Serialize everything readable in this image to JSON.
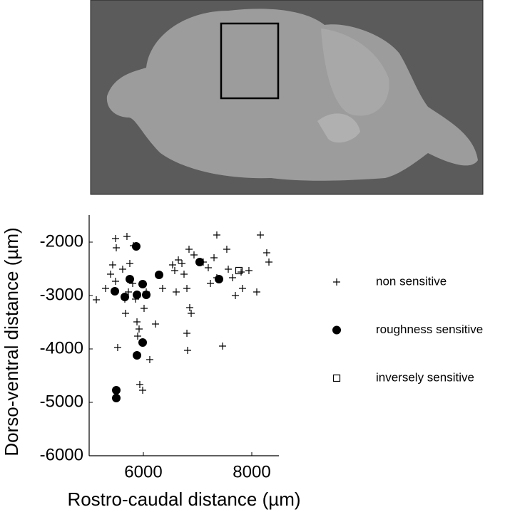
{
  "chart_data": {
    "type": "scatter",
    "x_label": "Rostro-caudal distance (µm)",
    "y_label": "Dorso-ventral distance (µm)",
    "xlim": [
      5000,
      8500
    ],
    "xticks": [
      6000,
      8000
    ],
    "ylim": [
      -6000,
      -1500
    ],
    "yticks": [
      -6000,
      -5000,
      -4000,
      -3000,
      -2000
    ],
    "legend": "right",
    "series": [
      {
        "name": "non sensitive",
        "marker": "plus",
        "color": "#000000",
        "x": [
          5132,
          5303,
          5395,
          5434,
          5487,
          5500,
          5487,
          5526,
          5618,
          5658,
          5671,
          5697,
          5724,
          5750,
          5803,
          5816,
          5855,
          5882,
          5895,
          5921,
          5934,
          5987,
          6013,
          6053,
          6118,
          6224,
          6355,
          6539,
          6579,
          6605,
          6645,
          6711,
          6750,
          6803,
          6803,
          6816,
          6855,
          6882,
          6842,
          6934,
          7105,
          7197,
          7237,
          7303,
          7355,
          7355,
          7461,
          7539,
          7566,
          7645,
          7697,
          7803,
          7829,
          7947,
          8092,
          8158,
          8276,
          8316
        ],
        "values": [
          -3080,
          -2867,
          -2600,
          -2427,
          -1933,
          -2107,
          -2733,
          -3973,
          -2507,
          -3067,
          -3333,
          -1893,
          -2933,
          -2400,
          -2773,
          -2067,
          -3067,
          -3493,
          -3760,
          -3627,
          -4667,
          -4773,
          -3240,
          -2933,
          -4200,
          -3533,
          -2867,
          -2427,
          -2533,
          -2933,
          -2333,
          -2400,
          -2600,
          -2867,
          -3707,
          -4027,
          -3227,
          -3333,
          -2133,
          -2240,
          -2373,
          -2480,
          -2773,
          -2293,
          -1867,
          -2667,
          -3947,
          -2133,
          -2507,
          -2667,
          -3000,
          -2560,
          -2867,
          -2533,
          -2933,
          -1867,
          -2200,
          -2373
        ]
      },
      {
        "name": "roughness sensitive",
        "marker": "dot",
        "color": "#000000",
        "x": [
          5474,
          5868,
          5658,
          5750,
          5882,
          5987,
          6053,
          6289,
          7039,
          7395,
          5882,
          5987,
          5500,
          5500
        ],
        "values": [
          -2920,
          -2080,
          -3027,
          -2693,
          -2987,
          -2787,
          -2987,
          -2613,
          -2373,
          -2693,
          -4120,
          -3880,
          -4773,
          -4920
        ]
      },
      {
        "name": "inversely sensitive",
        "marker": "square",
        "color": "#000000",
        "x": [
          7763
        ],
        "values": [
          -2533
        ]
      }
    ]
  }
}
